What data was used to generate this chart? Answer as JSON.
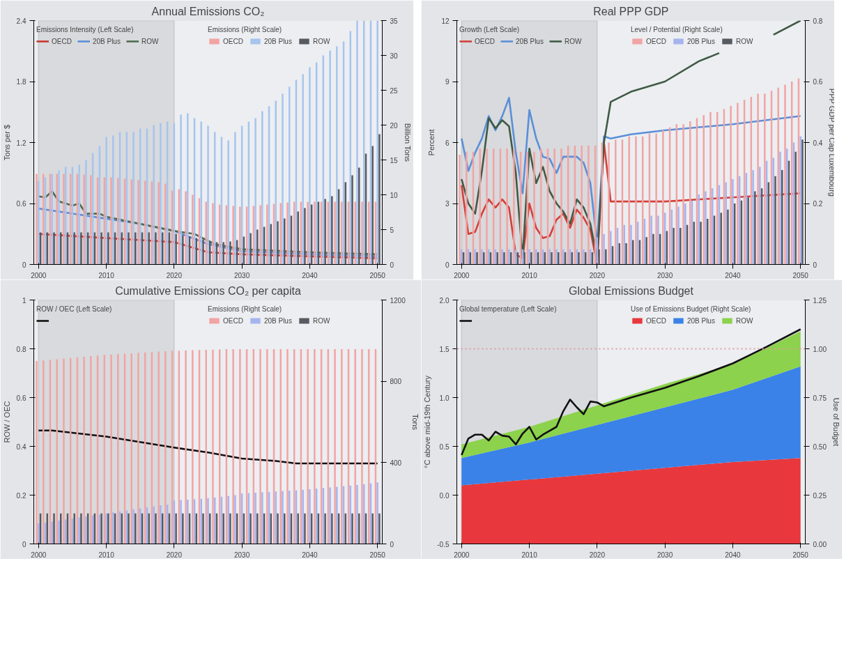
{
  "chart_data": [
    {
      "type": "bar",
      "title": "Annual Emissions CO₂",
      "ylabel": "Tons per $",
      "y2label": "Billion Tons",
      "annotations": [
        "Emissions Intensity (Left Scale)",
        "Emissions (Right Scale)"
      ],
      "x": [
        2000,
        2001,
        2002,
        2003,
        2004,
        2005,
        2006,
        2007,
        2008,
        2009,
        2010,
        2011,
        2012,
        2013,
        2014,
        2015,
        2016,
        2017,
        2018,
        2019,
        2020,
        2021,
        2022,
        2023,
        2024,
        2025,
        2026,
        2027,
        2028,
        2029,
        2030,
        2031,
        2032,
        2033,
        2034,
        2035,
        2036,
        2037,
        2038,
        2039,
        2040,
        2041,
        2042,
        2043,
        2044,
        2045,
        2046,
        2047,
        2048,
        2049,
        2050
      ],
      "xlim": [
        1999.3,
        2050.7
      ],
      "xticks": [
        2000,
        2010,
        2020,
        2030,
        2040,
        2050
      ],
      "ylim": [
        0,
        2.4
      ],
      "yticks": [
        0,
        0.6,
        1.2,
        1.8,
        2.4
      ],
      "y2lim": [
        0,
        35
      ],
      "y2ticks": [
        0,
        5,
        10,
        15,
        20,
        25,
        30,
        35
      ],
      "legend": "top",
      "bands": [
        {
          "axis": "x",
          "from": 2000,
          "to": 2020,
          "color": "#d3d4d8"
        }
      ],
      "series": [
        {
          "name": "OECD",
          "axis": "y2",
          "color": "#f2a3a3",
          "values": [
            13,
            13,
            13,
            13,
            13,
            13,
            13,
            12.9,
            12.8,
            12.5,
            12.5,
            12.5,
            12.4,
            12.3,
            12.2,
            12.1,
            12,
            11.9,
            11.8,
            11.6,
            10.6,
            10.8,
            10.5,
            10,
            9.5,
            9,
            8.8,
            8.6,
            8.5,
            8.4,
            8.3,
            8.3,
            8.4,
            8.5,
            8.6,
            8.7,
            8.8,
            8.9,
            9,
            9,
            9,
            9,
            9,
            9,
            9,
            9,
            9,
            9,
            9,
            9,
            9
          ]
        },
        {
          "name": "20B Plus",
          "axis": "y2",
          "color": "#a6c4ee",
          "values": [
            12,
            12.5,
            13,
            13.5,
            14,
            14,
            14.3,
            15,
            16,
            17,
            18.3,
            18.5,
            19,
            19,
            19,
            19.5,
            19.5,
            20,
            20.3,
            20.5,
            20.3,
            21.5,
            21.7,
            21,
            20.5,
            19.9,
            19,
            18.3,
            17.8,
            19,
            19.9,
            20.5,
            21,
            22,
            22.7,
            23.5,
            24.5,
            25.5,
            26.5,
            27.3,
            28.3,
            29,
            30,
            30.7,
            31.3,
            32,
            33.5,
            35,
            35,
            35,
            35
          ]
        },
        {
          "name": "ROW",
          "axis": "y2",
          "color": "#565b62",
          "values": [
            4.6,
            4.6,
            4.6,
            4.6,
            4.6,
            4.6,
            4.6,
            4.6,
            4.6,
            4.6,
            4.6,
            4.6,
            4.6,
            4.6,
            4.6,
            4.6,
            4.6,
            4.6,
            4.6,
            4.6,
            4.4,
            4.2,
            4,
            3.8,
            3.6,
            3.4,
            3.2,
            3.2,
            3.3,
            3.5,
            4,
            4.5,
            5,
            5.4,
            5.8,
            6.2,
            6.6,
            7,
            7.6,
            8.1,
            8.6,
            9,
            9.4,
            9.8,
            10.8,
            11.8,
            12.8,
            13.9,
            15.9,
            17,
            18.7
          ]
        },
        {
          "name": "OECD",
          "type": "line",
          "color": "#c8362f",
          "x": [
            2000,
            2005,
            2010,
            2015,
            2020,
            2025,
            2030,
            2040,
            2050
          ],
          "values": [
            0.3,
            0.28,
            0.26,
            0.24,
            0.22,
            0.12,
            0.1,
            0.08,
            0.06
          ]
        },
        {
          "name": "20B Plus",
          "type": "line",
          "color": "#5a8fd8",
          "x": [
            2000,
            2005,
            2010,
            2015,
            2020,
            2025,
            2030,
            2040,
            2050
          ],
          "values": [
            0.55,
            0.5,
            0.45,
            0.4,
            0.33,
            0.2,
            0.13,
            0.1,
            0.08
          ]
        },
        {
          "name": "ROW",
          "type": "line",
          "color": "#4f6b4f",
          "x": [
            2000,
            2001,
            2002,
            2003,
            2005,
            2006,
            2007,
            2009,
            2010,
            2015,
            2020,
            2023,
            2026,
            2030,
            2040,
            2050
          ],
          "values": [
            0.67,
            0.66,
            0.72,
            0.62,
            0.58,
            0.6,
            0.5,
            0.5,
            0.47,
            0.4,
            0.33,
            0.3,
            0.2,
            0.15,
            0.12,
            0.1
          ]
        }
      ]
    },
    {
      "type": "bar",
      "title": "Real PPP GDP",
      "ylabel": "Percent",
      "y2label": "PPP GDP per Cap Luxembourg",
      "annotations": [
        "Growth (Left Scale)",
        "Level / Potential (Right Scale)"
      ],
      "x": [
        2000,
        2001,
        2002,
        2003,
        2004,
        2005,
        2006,
        2007,
        2008,
        2009,
        2010,
        2011,
        2012,
        2013,
        2014,
        2015,
        2016,
        2017,
        2018,
        2019,
        2020,
        2021,
        2022,
        2023,
        2024,
        2025,
        2026,
        2027,
        2028,
        2029,
        2030,
        2031,
        2032,
        2033,
        2034,
        2035,
        2036,
        2037,
        2038,
        2039,
        2040,
        2041,
        2042,
        2043,
        2044,
        2045,
        2046,
        2047,
        2048,
        2049,
        2050
      ],
      "xlim": [
        1999.3,
        2050.7
      ],
      "xticks": [
        2000,
        2010,
        2020,
        2030,
        2040,
        2050
      ],
      "ylim": [
        0,
        12
      ],
      "yticks": [
        0,
        3,
        6,
        9,
        12
      ],
      "y2lim": [
        0,
        0.8
      ],
      "y2ticks": [
        0,
        0.2,
        0.4,
        0.6,
        0.8
      ],
      "legend": "top",
      "bands": [
        {
          "axis": "x",
          "from": 2000,
          "to": 2020,
          "color": "#d3d4d8"
        }
      ],
      "series": [
        {
          "name": "OECD",
          "axis": "y2",
          "color": "#f2a3a3",
          "values": [
            0.36,
            0.37,
            0.37,
            0.38,
            0.38,
            0.38,
            0.38,
            0.38,
            0.38,
            0.37,
            0.37,
            0.37,
            0.38,
            0.38,
            0.38,
            0.38,
            0.39,
            0.39,
            0.39,
            0.39,
            0.39,
            0.4,
            0.4,
            0.41,
            0.41,
            0.42,
            0.42,
            0.42,
            0.43,
            0.43,
            0.44,
            0.45,
            0.46,
            0.46,
            0.47,
            0.48,
            0.49,
            0.5,
            0.5,
            0.51,
            0.52,
            0.53,
            0.54,
            0.55,
            0.56,
            0.56,
            0.57,
            0.58,
            0.59,
            0.6,
            0.61
          ]
        },
        {
          "name": "20B Plus",
          "axis": "y2",
          "color": "#a6b4ee",
          "values": [
            0.05,
            0.05,
            0.05,
            0.05,
            0.05,
            0.05,
            0.05,
            0.05,
            0.05,
            0.05,
            0.05,
            0.05,
            0.05,
            0.05,
            0.05,
            0.05,
            0.05,
            0.05,
            0.05,
            0.05,
            0.09,
            0.1,
            0.11,
            0.12,
            0.13,
            0.13,
            0.14,
            0.15,
            0.16,
            0.16,
            0.17,
            0.18,
            0.19,
            0.2,
            0.21,
            0.23,
            0.24,
            0.25,
            0.26,
            0.27,
            0.28,
            0.29,
            0.3,
            0.31,
            0.32,
            0.34,
            0.35,
            0.37,
            0.38,
            0.4,
            0.42
          ]
        },
        {
          "name": "ROW",
          "axis": "y2",
          "color": "#565b62",
          "values": [
            0.04,
            0.04,
            0.04,
            0.04,
            0.04,
            0.04,
            0.04,
            0.04,
            0.04,
            0.04,
            0.04,
            0.04,
            0.04,
            0.04,
            0.04,
            0.04,
            0.04,
            0.04,
            0.04,
            0.04,
            0.05,
            0.05,
            0.06,
            0.07,
            0.07,
            0.08,
            0.08,
            0.09,
            0.1,
            0.1,
            0.11,
            0.12,
            0.12,
            0.13,
            0.14,
            0.14,
            0.15,
            0.16,
            0.17,
            0.18,
            0.2,
            0.21,
            0.22,
            0.24,
            0.25,
            0.27,
            0.29,
            0.31,
            0.34,
            0.37,
            0.41
          ]
        },
        {
          "name": "OECD",
          "type": "line",
          "color": "#d2403a",
          "x": [
            2000,
            2001,
            2002,
            2003,
            2004,
            2005,
            2006,
            2007,
            2008,
            2009,
            2010,
            2011,
            2012,
            2013,
            2014,
            2015,
            2016,
            2017,
            2018,
            2019,
            2020,
            2021,
            2022,
            2030,
            2040,
            2050
          ],
          "values": [
            3.9,
            1.5,
            1.6,
            2.5,
            3.2,
            2.8,
            3.2,
            2.8,
            0.5,
            0.3,
            3.0,
            1.8,
            1.3,
            1.4,
            2.2,
            2.5,
            1.8,
            2.7,
            2.3,
            1.7,
            0.0,
            6.0,
            3.1,
            3.1,
            3.3,
            3.5
          ]
        },
        {
          "name": "20B Plus",
          "type": "line",
          "color": "#5a8fd8",
          "x": [
            2000,
            2001,
            2002,
            2003,
            2004,
            2005,
            2006,
            2007,
            2008,
            2009,
            2010,
            2011,
            2012,
            2013,
            2014,
            2015,
            2016,
            2017,
            2018,
            2019,
            2020,
            2021,
            2022,
            2025,
            2030,
            2040,
            2050
          ],
          "values": [
            6.2,
            4.6,
            5.5,
            6.2,
            7.3,
            6.6,
            7.3,
            8.2,
            5.5,
            3.5,
            7.6,
            6.2,
            5.3,
            5.2,
            4.5,
            5.3,
            5.3,
            5.3,
            5.0,
            4.0,
            1.0,
            6.3,
            6.2,
            6.4,
            6.6,
            6.9,
            7.3
          ]
        },
        {
          "name": "ROW",
          "type": "line",
          "color": "#3f5a45",
          "x": [
            2000,
            2001,
            2002,
            2003,
            2004,
            2005,
            2006,
            2007,
            2008,
            2009,
            2010,
            2011,
            2012,
            2013,
            2014,
            2015,
            2016,
            2017,
            2018,
            2019,
            2020,
            2021,
            2022,
            2025,
            2030,
            2035,
            2038,
            2042,
            2046,
            2050
          ],
          "values": [
            4.2,
            3.0,
            2.5,
            4.6,
            7.2,
            6.7,
            7.1,
            6.8,
            4.5,
            0.3,
            5.7,
            4.0,
            4.8,
            3.6,
            3.0,
            2.6,
            2.0,
            3.2,
            2.8,
            2.0,
            0.3,
            6.0,
            8.0,
            8.5,
            9.0,
            10.0,
            10.4,
            null,
            11.3,
            12.0
          ]
        }
      ]
    },
    {
      "type": "bar",
      "title": "Cumulative Emissions CO₂ per capita",
      "ylabel": "ROW / OEC",
      "y2label": "Tons",
      "annotations": [
        "ROW / OEC (Left Scale)",
        "Emissions (Right Scale)"
      ],
      "x": [
        2000,
        2001,
        2002,
        2003,
        2004,
        2005,
        2006,
        2007,
        2008,
        2009,
        2010,
        2011,
        2012,
        2013,
        2014,
        2015,
        2016,
        2017,
        2018,
        2019,
        2020,
        2021,
        2022,
        2023,
        2024,
        2025,
        2026,
        2027,
        2028,
        2029,
        2030,
        2031,
        2032,
        2033,
        2034,
        2035,
        2036,
        2037,
        2038,
        2039,
        2040,
        2041,
        2042,
        2043,
        2044,
        2045,
        2046,
        2047,
        2048,
        2049,
        2050
      ],
      "xlim": [
        1999.3,
        2050.7
      ],
      "xticks": [
        2000,
        2010,
        2020,
        2030,
        2040,
        2050
      ],
      "ylim": [
        0,
        1
      ],
      "yticks": [
        0,
        0.2,
        0.4,
        0.6,
        0.8,
        1
      ],
      "y2lim": [
        0,
        1200
      ],
      "y2ticks": [
        0,
        400,
        800,
        1200
      ],
      "legend": "top",
      "bands": [
        {
          "axis": "x",
          "from": 2000,
          "to": 2020,
          "color": "#d3d4d8"
        }
      ],
      "series": [
        {
          "name": "OECD",
          "axis": "y2",
          "color": "#f2a3a3",
          "values": [
            900,
            903,
            906,
            909,
            912,
            915,
            918,
            921,
            924,
            927,
            930,
            932,
            934,
            936,
            938,
            940,
            942,
            944,
            946,
            948,
            950,
            951,
            952,
            953,
            954,
            955,
            956,
            957,
            958,
            958,
            958,
            958,
            958,
            958,
            958,
            958,
            958,
            958,
            958,
            958,
            958,
            958,
            958,
            958,
            958,
            958,
            958,
            958,
            958,
            958,
            958
          ]
        },
        {
          "name": "20B Plus",
          "axis": "y2",
          "color": "#a6b4ee",
          "values": [
            100,
            105,
            110,
            115,
            120,
            125,
            130,
            135,
            140,
            145,
            150,
            155,
            160,
            165,
            170,
            175,
            180,
            185,
            190,
            193,
            214,
            216,
            218,
            220,
            222,
            225,
            228,
            232,
            236,
            240,
            248,
            250,
            252,
            254,
            256,
            258,
            260,
            262,
            264,
            266,
            269,
            272,
            275,
            278,
            281,
            284,
            287,
            290,
            294,
            298,
            303
          ]
        },
        {
          "name": "ROW",
          "axis": "y2",
          "color": "#565b62",
          "values": [
            150,
            150,
            150,
            150,
            150,
            150,
            150,
            150,
            150,
            150,
            150,
            150,
            150,
            150,
            150,
            150,
            150,
            150,
            150,
            150,
            150,
            150,
            150,
            150,
            150,
            150,
            150,
            150,
            150,
            150,
            150,
            150,
            150,
            150,
            150,
            150,
            150,
            150,
            150,
            150,
            150,
            150,
            150,
            150,
            150,
            150,
            150,
            150,
            150,
            150,
            150
          ]
        },
        {
          "type": "line",
          "color": "#111111",
          "x": [
            2000,
            2002,
            2010,
            2020,
            2025,
            2030,
            2035,
            2038,
            2050
          ],
          "values": [
            0.465,
            0.465,
            0.44,
            0.395,
            0.375,
            0.35,
            0.34,
            0.33,
            0.33
          ]
        }
      ]
    },
    {
      "type": "area",
      "title": "Global Emissions Budget",
      "ylabel": "°C above mid-19th Century",
      "y2label": "Use of Budget",
      "annotations": [
        "Global temperature (Left Scale)",
        "Use of Emissions Budget (Right Scale)"
      ],
      "xlim": [
        1999.3,
        2050.7
      ],
      "xticks": [
        2000,
        2010,
        2020,
        2030,
        2040,
        2050
      ],
      "ylim": [
        -0.5,
        2.0
      ],
      "yticks": [
        {
          "value": -0.5,
          "label": "-0.5"
        },
        {
          "value": 0,
          "label": "0.0"
        },
        {
          "value": 0.5,
          "label": "0.5"
        },
        {
          "value": 1,
          "label": "1.0"
        },
        {
          "value": 1.5,
          "label": "1.5"
        },
        {
          "value": 2,
          "label": "2.0"
        }
      ],
      "y2lim": [
        0,
        1.25
      ],
      "y2ticks": [
        {
          "value": 0,
          "label": "0.00"
        },
        {
          "value": 0.25,
          "label": "0.25"
        },
        {
          "value": 0.5,
          "label": "0.50"
        },
        {
          "value": 0.75,
          "label": "0.75"
        },
        {
          "value": 1,
          "label": "1.00"
        },
        {
          "value": 1.25,
          "label": "1.25"
        }
      ],
      "stacked": true,
      "legend": "top",
      "bands": [
        {
          "axis": "x",
          "from": 2000,
          "to": 2020,
          "color": "#d3d4d8"
        }
      ],
      "ref_lines": [
        {
          "axis": "y",
          "value": 1.5,
          "color": "#e39aa4",
          "line_style": "dotted"
        }
      ],
      "series": [
        {
          "name": "OECD",
          "axis": "y2",
          "color": "#e8383d",
          "x": [
            2000,
            2010,
            2020,
            2030,
            2040,
            2050
          ],
          "values": [
            0.3,
            0.33,
            0.36,
            0.39,
            0.42,
            0.44
          ]
        },
        {
          "name": "20B Plus",
          "axis": "y2",
          "color": "#3a82e8",
          "x": [
            2000,
            2010,
            2020,
            2030,
            2040,
            2050
          ],
          "values": [
            0.14,
            0.19,
            0.25,
            0.31,
            0.37,
            0.47
          ]
        },
        {
          "name": "ROW",
          "axis": "y2",
          "color": "#8cd24c",
          "x": [
            2000,
            2010,
            2020,
            2030,
            2040,
            2050
          ],
          "values": [
            0.07,
            0.08,
            0.1,
            0.12,
            0.13,
            0.18
          ]
        },
        {
          "type": "line",
          "color": "#111111",
          "x": [
            2000,
            2001,
            2002,
            2003,
            2004,
            2005,
            2006,
            2007,
            2008,
            2009,
            2010,
            2011,
            2012,
            2013,
            2014,
            2015,
            2016,
            2017,
            2018,
            2019,
            2020,
            2021,
            2025,
            2030,
            2035,
            2040,
            2045,
            2050
          ],
          "values": [
            0.41,
            0.58,
            0.62,
            0.62,
            0.56,
            0.65,
            0.61,
            0.6,
            0.52,
            0.63,
            0.7,
            0.57,
            0.62,
            0.66,
            0.7,
            0.86,
            0.98,
            0.9,
            0.83,
            0.96,
            0.95,
            0.91,
            1.0,
            1.1,
            1.22,
            1.35,
            1.52,
            1.7
          ]
        }
      ]
    }
  ]
}
